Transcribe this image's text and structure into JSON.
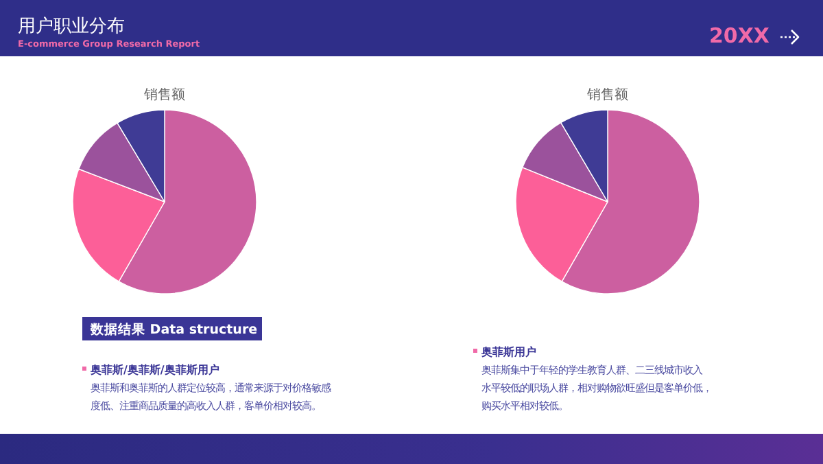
{
  "chart_data": [
    {
      "type": "other",
      "title": "用户职业分布",
      "subtitle": "E-commerce Group Research Report",
      "annotations": [
        "20XX",
        "数据结果 Data structure",
        "奥菲斯/奥菲斯/奥菲斯用户",
        "奥菲斯和奥菲斯的人群定位较高，通常来源于对价格敏感",
        "度低、注重商品质量的高收入人群，客单价相对较高。",
        "奥菲斯用户",
        "奥菲斯集中于年轻的学生教育人群、二三线城市收入",
        "水平较低的职场人群，相对购物欲旺盛但是客单价低，",
        "购买水平相对较低。"
      ]
    },
    {
      "type": "pie",
      "title": "销售额",
      "categories": [
        null,
        null,
        null,
        null
      ],
      "values": [
        58.3,
        22.5,
        10.6,
        8.6
      ],
      "colors": [
        "#cc5fa0",
        "#fc5f98",
        "#9b529c",
        "#3f3b95"
      ]
    },
    {
      "type": "pie",
      "title": "销售额",
      "categories": [
        null,
        null,
        null,
        null
      ],
      "values": [
        58.3,
        22.8,
        10.4,
        8.5
      ],
      "colors": [
        "#cc5fa0",
        "#fc5f98",
        "#9b529c",
        "#3f3b95"
      ]
    }
  ]
}
